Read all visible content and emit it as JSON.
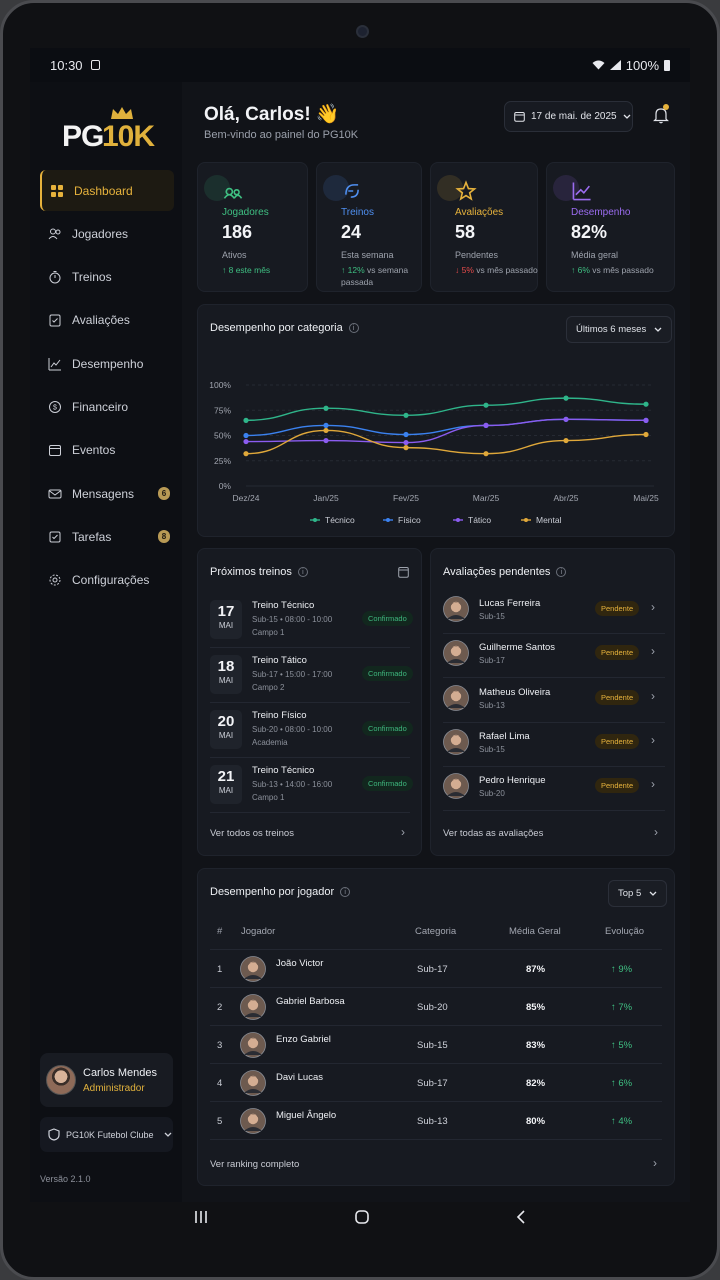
{
  "status": {
    "time": "10:30",
    "battery": "100%"
  },
  "brand": {
    "pg": "PG",
    "tenk": "10K"
  },
  "nav": [
    {
      "label": "Dashboard",
      "icon": "dashboard-icon",
      "active": true
    },
    {
      "label": "Jogadores",
      "icon": "users-icon"
    },
    {
      "label": "Treinos",
      "icon": "stopwatch-icon"
    },
    {
      "label": "Avaliações",
      "icon": "clipboard-icon"
    },
    {
      "label": "Desempenho",
      "icon": "chart-icon"
    },
    {
      "label": "Financeiro",
      "icon": "money-icon"
    },
    {
      "label": "Eventos",
      "icon": "calendar-icon"
    },
    {
      "label": "Mensagens",
      "icon": "mail-icon",
      "badge": "6"
    },
    {
      "label": "Tarefas",
      "icon": "tasks-icon",
      "badge": "8"
    },
    {
      "label": "Configurações",
      "icon": "gear-icon"
    }
  ],
  "user": {
    "name": "Carlos Mendes",
    "role": "Administrador"
  },
  "club": "PG10K Futebol Clube",
  "version": "Versão 2.1.0",
  "header": {
    "greeting": "Olá, Carlos! 👋",
    "subtitle": "Bem-vindo ao painel do PG10K",
    "date": "17 de mai. de 2025"
  },
  "stats": [
    {
      "label": "Jogadores",
      "value": "186",
      "caption": "Ativos",
      "trend": "↑ 8 este mês",
      "dir": "up",
      "color": "#3fbf82",
      "icon": "players-icon"
    },
    {
      "label": "Treinos",
      "value": "24",
      "caption": "Esta semana",
      "trend": "↑ 12%",
      "trend_rest": " vs semana passada",
      "dir": "up",
      "color": "#4f8ff0",
      "icon": "training-icon"
    },
    {
      "label": "Avaliações",
      "value": "58",
      "caption": "Pendentes",
      "trend": "↓ 5%",
      "trend_rest": " vs mês passado",
      "dir": "down",
      "color": "#e6b23c",
      "icon": "star-icon"
    },
    {
      "label": "Desempenho",
      "value": "82%",
      "caption": "Média geral",
      "trend": "↑ 6%",
      "trend_rest": " vs mês passado",
      "dir": "up",
      "color": "#9b6cf0",
      "icon": "growth-icon"
    }
  ],
  "performance_chart": {
    "title": "Desempenho por categoria",
    "range_select": "Últimos 6 meses"
  },
  "chart_data": {
    "type": "line",
    "categories": [
      "Dez/24",
      "Jan/25",
      "Fev/25",
      "Mar/25",
      "Abr/25",
      "Mai/25"
    ],
    "yticks": [
      "0%",
      "25%",
      "50%",
      "75%",
      "100%"
    ],
    "ylim": [
      0,
      100
    ],
    "legend_position": "bottom",
    "series": [
      {
        "name": "Técnico",
        "color": "#2fb58a",
        "values": [
          65,
          77,
          70,
          80,
          87,
          81
        ]
      },
      {
        "name": "Físico",
        "color": "#3b82f0",
        "values": [
          50,
          60,
          51,
          60,
          66,
          65
        ]
      },
      {
        "name": "Tático",
        "color": "#8b5cf0",
        "values": [
          44,
          45,
          43,
          60,
          66,
          65
        ]
      },
      {
        "name": "Mental",
        "color": "#e0a83a",
        "values": [
          32,
          55,
          38,
          32,
          45,
          51
        ]
      }
    ]
  },
  "trainings": {
    "title": "Próximos treinos",
    "items": [
      {
        "day": "17",
        "month": "MAI",
        "title": "Treino Técnico",
        "sub": "Sub-15 • 08:00 - 10:00",
        "place": "Campo 1",
        "status": "Confirmado"
      },
      {
        "day": "18",
        "month": "MAI",
        "title": "Treino Tático",
        "sub": "Sub-17 • 15:00 - 17:00",
        "place": "Campo 2",
        "status": "Confirmado"
      },
      {
        "day": "20",
        "month": "MAI",
        "title": "Treino Físico",
        "sub": "Sub-20 • 08:00 - 10:00",
        "place": "Academia",
        "status": "Confirmado"
      },
      {
        "day": "21",
        "month": "MAI",
        "title": "Treino Técnico",
        "sub": "Sub-13 • 14:00 - 16:00",
        "place": "Campo 1",
        "status": "Confirmado"
      }
    ],
    "footer": "Ver todos os treinos"
  },
  "evaluations": {
    "title": "Avaliações pendentes",
    "items": [
      {
        "name": "Lucas Ferreira",
        "sub": "Sub-15",
        "status": "Pendente"
      },
      {
        "name": "Guilherme Santos",
        "sub": "Sub-17",
        "status": "Pendente"
      },
      {
        "name": "Matheus Oliveira",
        "sub": "Sub-13",
        "status": "Pendente"
      },
      {
        "name": "Rafael Lima",
        "sub": "Sub-15",
        "status": "Pendente"
      },
      {
        "name": "Pedro Henrique",
        "sub": "Sub-20",
        "status": "Pendente"
      }
    ],
    "footer": "Ver todas as avaliações"
  },
  "ranking": {
    "title": "Desempenho por jogador",
    "select": "Top 5",
    "headers": {
      "rank": "#",
      "player": "Jogador",
      "category": "Categoria",
      "avg": "Média Geral",
      "evo": "Evolução"
    },
    "rows": [
      {
        "rank": "1",
        "name": "João Victor",
        "category": "Sub-17",
        "avg": "87%",
        "evo": "↑ 9%"
      },
      {
        "rank": "2",
        "name": "Gabriel Barbosa",
        "category": "Sub-20",
        "avg": "85%",
        "evo": "↑ 7%"
      },
      {
        "rank": "3",
        "name": "Enzo Gabriel",
        "category": "Sub-15",
        "avg": "83%",
        "evo": "↑ 5%"
      },
      {
        "rank": "4",
        "name": "Davi Lucas",
        "category": "Sub-17",
        "avg": "82%",
        "evo": "↑ 6%"
      },
      {
        "rank": "5",
        "name": "Miguel Ângelo",
        "category": "Sub-13",
        "avg": "80%",
        "evo": "↑ 4%"
      }
    ],
    "footer": "Ver ranking completo"
  }
}
